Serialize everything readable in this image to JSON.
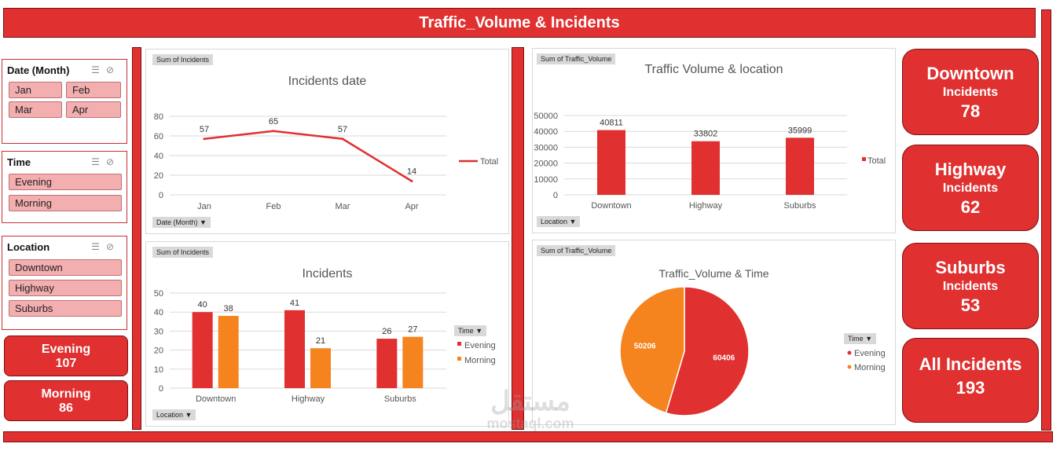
{
  "title": "Traffic_Volume & Incidents",
  "colors": {
    "accent": "#e03030",
    "secondary": "#f5841f",
    "chip": "#f3aeb0"
  },
  "slicers": {
    "date": {
      "label": "Date (Month)",
      "items": [
        "Jan",
        "Feb",
        "Mar",
        "Apr"
      ]
    },
    "time": {
      "label": "Time",
      "items": [
        "Evening",
        "Morning"
      ]
    },
    "location": {
      "label": "Location",
      "items": [
        "Downtown",
        "Highway",
        "Suburbs"
      ]
    },
    "icons": [
      "multi-select-icon",
      "clear-filter-icon"
    ]
  },
  "left_kpis": [
    {
      "label": "Evening",
      "value": "107"
    },
    {
      "label": "Morning",
      "value": "86"
    }
  ],
  "right_kpis": [
    {
      "label": "Downtown",
      "sub": "Incidents",
      "value": "78"
    },
    {
      "label": "Highway",
      "sub": "Incidents",
      "value": "62"
    },
    {
      "label": "Suburbs",
      "sub": "Incidents",
      "value": "53"
    },
    {
      "label": "All Incidents",
      "value": "193"
    }
  ],
  "charts": {
    "incidents_date": {
      "tag": "Sum of Incidents",
      "dropdown": "Date (Month)"
    },
    "incidents_location": {
      "tag": "Sum of Incidents",
      "dropdown": "Location",
      "legend_head": "Time"
    },
    "traffic_location": {
      "tag": "Sum of Traffic_Volume",
      "dropdown": "Location"
    },
    "traffic_time": {
      "tag": "Sum of Traffic_Volume",
      "legend_head": "Time"
    }
  },
  "watermark": {
    "arabic": "مستقل",
    "latin": "mostaql.com"
  },
  "chart_data": [
    {
      "type": "line",
      "title": "Incidents date",
      "categories": [
        "Jan",
        "Feb",
        "Mar",
        "Apr"
      ],
      "series": [
        {
          "name": "Total",
          "values": [
            57,
            65,
            57,
            14
          ]
        }
      ],
      "ylim": [
        0,
        80
      ],
      "yticks": [
        "0",
        "20",
        "40",
        "60",
        "80"
      ],
      "grid": true,
      "legend": "right"
    },
    {
      "type": "bar",
      "title": "Incidents",
      "categories": [
        "Downtown",
        "Highway",
        "Suburbs"
      ],
      "series": [
        {
          "name": "Evening",
          "values": [
            40,
            41,
            26
          ]
        },
        {
          "name": "Morning",
          "values": [
            38,
            21,
            27
          ]
        }
      ],
      "ylim": [
        0,
        50
      ],
      "yticks": [
        "0",
        "10",
        "20",
        "30",
        "40",
        "50"
      ],
      "grid": true,
      "legend": "right"
    },
    {
      "type": "bar",
      "title": "Traffic Volume & location",
      "categories": [
        "Downtown",
        "Highway",
        "Suburbs"
      ],
      "series": [
        {
          "name": "Total",
          "values": [
            40811,
            33802,
            35999
          ]
        }
      ],
      "ylim": [
        0,
        50000
      ],
      "yticks": [
        "0",
        "10000",
        "20000",
        "30000",
        "40000",
        "50000"
      ],
      "grid": true,
      "legend": "right"
    },
    {
      "type": "pie",
      "title": "Traffic_Volume & Time",
      "categories": [
        "Evening",
        "Morning"
      ],
      "values": [
        60406,
        50206
      ],
      "labels": [
        "60406",
        "50206"
      ],
      "legend": "right"
    }
  ]
}
